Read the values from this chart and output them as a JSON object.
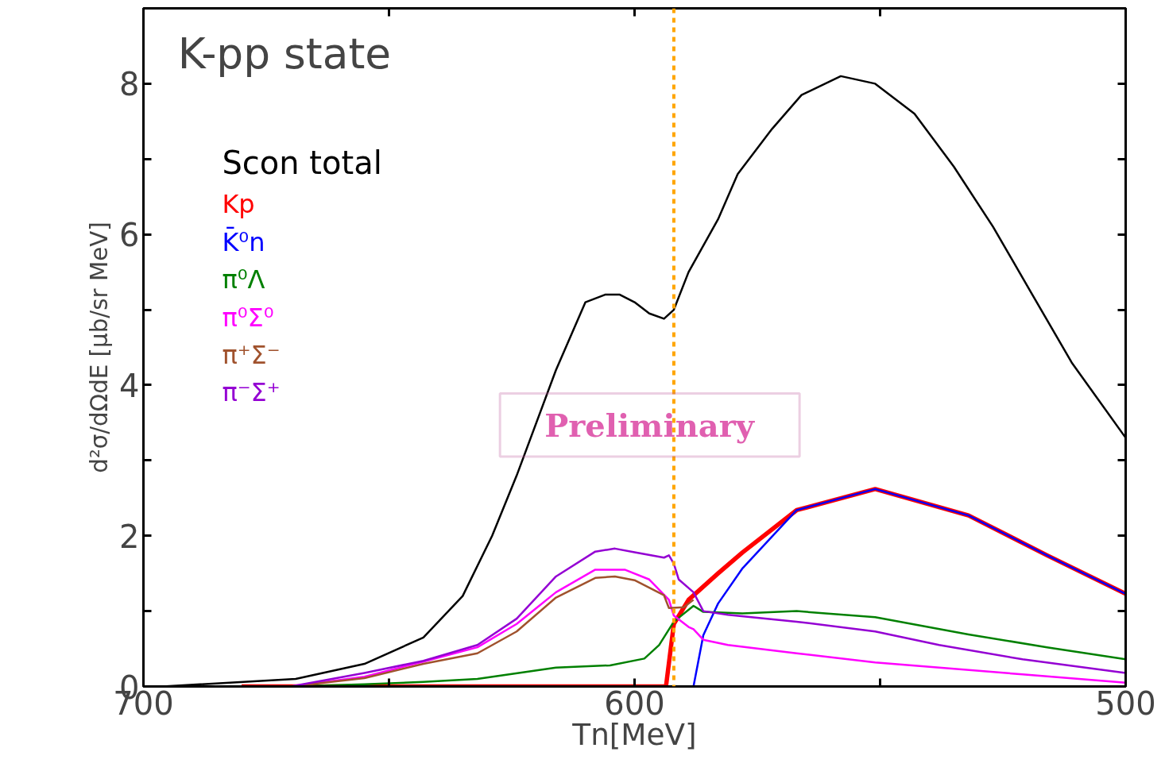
{
  "chart_data": {
    "type": "line",
    "title": "K-pp state",
    "xlabel": "Tn[MeV]",
    "ylabel": "d²σ/dΩdE [μb/sr MeV]",
    "xlim": [
      700,
      500
    ],
    "ylim": [
      0,
      9
    ],
    "xticks": [
      700,
      {
        "value": 650,
        "label": null
      },
      600,
      {
        "value": 550,
        "label": null
      },
      500
    ],
    "yticks": [
      0,
      {
        "value": 1,
        "label": null
      },
      2,
      {
        "value": 3,
        "label": null
      },
      4,
      {
        "value": 5,
        "label": null
      },
      6,
      {
        "value": 7,
        "label": null
      },
      8
    ],
    "grid": false,
    "legend": "top left",
    "line_style": "solid",
    "annotations": [
      "Preliminary"
    ],
    "ref_lines": [
      {
        "axis": "x",
        "value": 592,
        "label": null,
        "color": "#ffa500",
        "line_style": "dashed"
      }
    ],
    "series": [
      {
        "name": "Scon total",
        "color": "#000000",
        "x": [
          696,
          669,
          655,
          643,
          635,
          629,
          624,
          616,
          610,
          606,
          603,
          600,
          597,
          594,
          592,
          589,
          583,
          579,
          572,
          566,
          558,
          551,
          543,
          535,
          527,
          519,
          511,
          500
        ],
        "values": [
          0,
          0.1,
          0.3,
          0.65,
          1.2,
          2.0,
          2.8,
          4.2,
          5.1,
          5.2,
          5.2,
          5.1,
          4.95,
          4.88,
          5.0,
          5.5,
          6.2,
          6.8,
          7.4,
          7.85,
          8.1,
          8.0,
          7.6,
          6.9,
          6.1,
          5.2,
          4.3,
          3.3
        ]
      },
      {
        "name": "Kp",
        "color": "#ff0000",
        "x": [
          680,
          593.6,
          592,
          589,
          583,
          578,
          567,
          551,
          532,
          516,
          500
        ],
        "values": [
          0,
          0,
          0.83,
          1.15,
          1.5,
          1.78,
          2.34,
          2.62,
          2.27,
          1.74,
          1.23
        ]
      },
      {
        "name": "K̄⁰n",
        "color": "#0000ff",
        "x": [
          680,
          588,
          586,
          583,
          578,
          567,
          551,
          532,
          516,
          500
        ],
        "values": [
          0,
          0,
          0.68,
          1.1,
          1.57,
          2.34,
          2.62,
          2.27,
          1.74,
          1.23
        ]
      },
      {
        "name": "π⁰Λ",
        "color": "#008000",
        "x": [
          670,
          655,
          643,
          632,
          616,
          605,
          598,
          595,
          592,
          588,
          586,
          578,
          567,
          551,
          532,
          516,
          500
        ],
        "values": [
          0,
          0.03,
          0.06,
          0.1,
          0.25,
          0.28,
          0.37,
          0.55,
          0.86,
          1.07,
          0.99,
          0.97,
          1.0,
          0.92,
          0.69,
          0.52,
          0.36
        ]
      },
      {
        "name": "π⁰Σ⁰",
        "color": "#ff00ff",
        "x": [
          670,
          655,
          643,
          632,
          624,
          616,
          608,
          602,
          597,
          593,
          592,
          589,
          588,
          586,
          581,
          567,
          551,
          521,
          500
        ],
        "values": [
          0,
          0.13,
          0.33,
          0.52,
          0.83,
          1.25,
          1.55,
          1.55,
          1.42,
          1.15,
          0.94,
          0.79,
          0.76,
          0.62,
          0.55,
          0.44,
          0.32,
          0.16,
          0.05
        ]
      },
      {
        "name": "π⁺Σ⁻",
        "color": "#a0522d",
        "x": [
          670,
          655,
          643,
          632,
          624,
          616,
          608,
          604,
          600,
          594,
          593,
          590,
          588
        ],
        "values": [
          0,
          0.11,
          0.3,
          0.44,
          0.73,
          1.18,
          1.44,
          1.46,
          1.41,
          1.21,
          1.04,
          1.05,
          1.15
        ]
      },
      {
        "name": "π⁻Σ⁺",
        "color": "#9400d3",
        "x": [
          670,
          655,
          643,
          632,
          624,
          616,
          608,
          604,
          600,
          594,
          593,
          592,
          591,
          588,
          586,
          581,
          567,
          551,
          538,
          521,
          500
        ],
        "values": [
          0,
          0.18,
          0.34,
          0.55,
          0.9,
          1.46,
          1.79,
          1.83,
          1.78,
          1.71,
          1.74,
          1.63,
          1.42,
          1.25,
          1.0,
          0.95,
          0.86,
          0.73,
          0.55,
          0.36,
          0.18
        ]
      }
    ]
  }
}
